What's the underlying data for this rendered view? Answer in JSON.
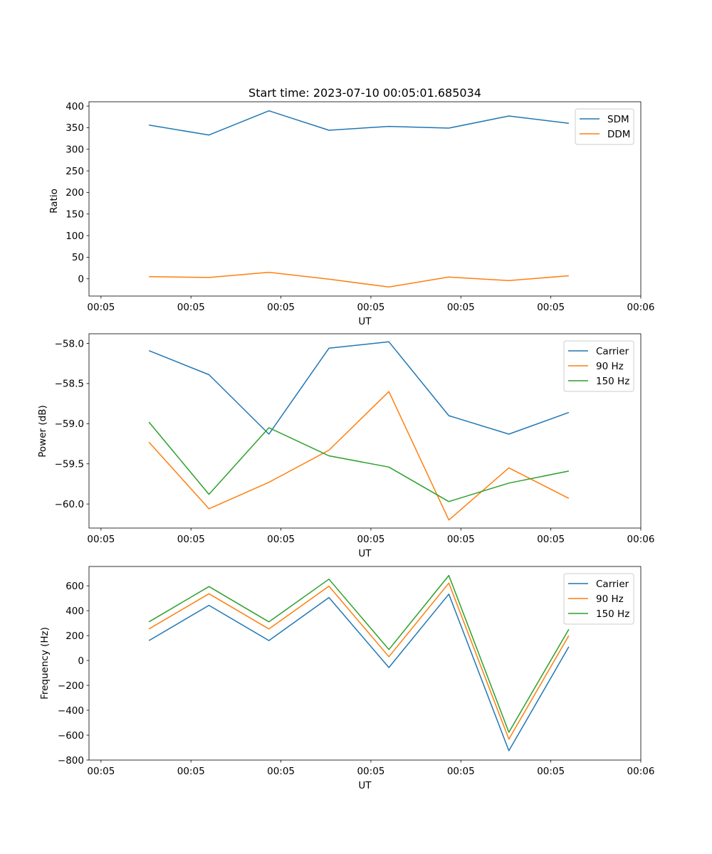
{
  "colors": {
    "series_1": "#1f77b4",
    "series_2": "#ff7f0e",
    "series_3": "#2ca02c"
  },
  "chart_data": [
    {
      "type": "line",
      "title": "Start time: 2023-07-10 00:05:01.685034",
      "xlabel": "UT",
      "ylabel": "Ratio",
      "x": [
        1,
        2,
        3,
        4,
        5,
        6,
        7,
        8
      ],
      "x_tick_positions": [
        0.2,
        1.7,
        3.2,
        4.7,
        6.2,
        7.7,
        9.2
      ],
      "x_tick_labels": [
        "00:05",
        "00:05",
        "00:05",
        "00:05",
        "00:05",
        "00:05",
        "00:06"
      ],
      "xlim": [
        0,
        9.2
      ],
      "ylim": [
        -40,
        410
      ],
      "y_ticks": [
        0,
        50,
        100,
        150,
        200,
        250,
        300,
        350,
        400
      ],
      "legend_position": "top-right",
      "series": [
        {
          "name": "SDM",
          "color": "#1f77b4",
          "values": [
            356,
            333,
            389,
            344,
            353,
            349,
            377,
            360
          ]
        },
        {
          "name": "DDM",
          "color": "#ff7f0e",
          "values": [
            5,
            3,
            15,
            -1,
            -19,
            4,
            -4,
            7
          ]
        }
      ]
    },
    {
      "type": "line",
      "title": "",
      "xlabel": "UT",
      "ylabel": "Power (dB)",
      "x": [
        1,
        2,
        3,
        4,
        5,
        6,
        7,
        8
      ],
      "x_tick_positions": [
        0.2,
        1.7,
        3.2,
        4.7,
        6.2,
        7.7,
        9.2
      ],
      "x_tick_labels": [
        "00:05",
        "00:05",
        "00:05",
        "00:05",
        "00:05",
        "00:05",
        "00:06"
      ],
      "xlim": [
        0,
        9.2
      ],
      "ylim": [
        -60.3,
        -57.88
      ],
      "y_ticks": [
        -60.0,
        -59.5,
        -59.0,
        -58.5,
        -58.0
      ],
      "y_tick_labels": [
        "−60.0",
        "−59.5",
        "−59.0",
        "−58.5",
        "−58.0"
      ],
      "legend_position": "top-right",
      "series": [
        {
          "name": "Carrier",
          "color": "#1f77b4",
          "values": [
            -58.09,
            -58.39,
            -59.13,
            -58.06,
            -57.98,
            -58.9,
            -59.13,
            -58.86
          ]
        },
        {
          "name": "90 Hz",
          "color": "#ff7f0e",
          "values": [
            -59.23,
            -60.06,
            -59.73,
            -59.33,
            -58.6,
            -60.2,
            -59.55,
            -59.93
          ]
        },
        {
          "name": "150 Hz",
          "color": "#2ca02c",
          "values": [
            -58.98,
            -59.88,
            -59.05,
            -59.4,
            -59.54,
            -59.97,
            -59.74,
            -59.59
          ]
        }
      ]
    },
    {
      "type": "line",
      "title": "",
      "xlabel": "UT",
      "ylabel": "Frequency (Hz)",
      "x": [
        1,
        2,
        3,
        4,
        5,
        6,
        7,
        8
      ],
      "x_tick_positions": [
        0.2,
        1.7,
        3.2,
        4.7,
        6.2,
        7.7,
        9.2
      ],
      "x_tick_labels": [
        "00:05",
        "00:05",
        "00:05",
        "00:05",
        "00:05",
        "00:05",
        "00:06"
      ],
      "xlim": [
        0,
        9.2
      ],
      "ylim": [
        -800,
        755
      ],
      "y_ticks": [
        -800,
        -600,
        -400,
        -200,
        0,
        200,
        400,
        600
      ],
      "y_tick_labels": [
        "−800",
        "−600",
        "−400",
        "−200",
        "0",
        "200",
        "400",
        "600"
      ],
      "legend_position": "top-right",
      "series": [
        {
          "name": "Carrier",
          "color": "#1f77b4",
          "values": [
            160,
            443,
            160,
            506,
            -57,
            533,
            -725,
            110
          ]
        },
        {
          "name": "90 Hz",
          "color": "#ff7f0e",
          "values": [
            253,
            536,
            253,
            597,
            30,
            622,
            -632,
            200
          ]
        },
        {
          "name": "150 Hz",
          "color": "#2ca02c",
          "values": [
            310,
            594,
            310,
            653,
            88,
            683,
            -577,
            250
          ]
        }
      ]
    }
  ]
}
